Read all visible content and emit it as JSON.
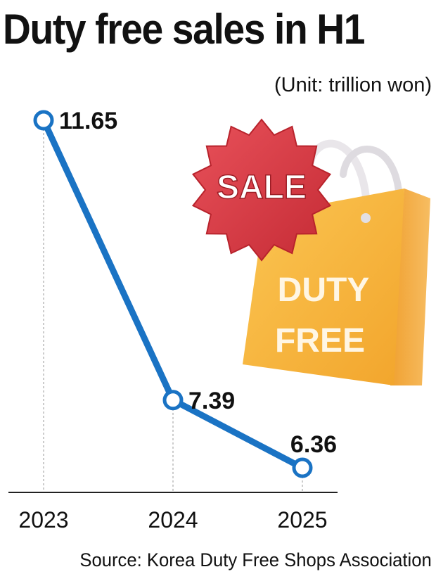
{
  "title": "Duty free sales in H1",
  "unit_note": "(Unit: trillion won)",
  "source": "Source: Korea Duty Free Shops Association",
  "illustration": {
    "badge_text": "SALE",
    "bag_line1": "DUTY",
    "bag_line2": "FREE",
    "badge_color": "#d9363e",
    "bag_color": "#f7b23b"
  },
  "chart_data": {
    "type": "line",
    "categories": [
      "2023",
      "2024",
      "2025"
    ],
    "series": [
      {
        "values": [
          11.65,
          7.39,
          6.36
        ],
        "labels": [
          "11.65",
          "7.39",
          "6.36"
        ]
      }
    ],
    "line_color": "#1a73c4",
    "grid": false,
    "legend": "none"
  }
}
